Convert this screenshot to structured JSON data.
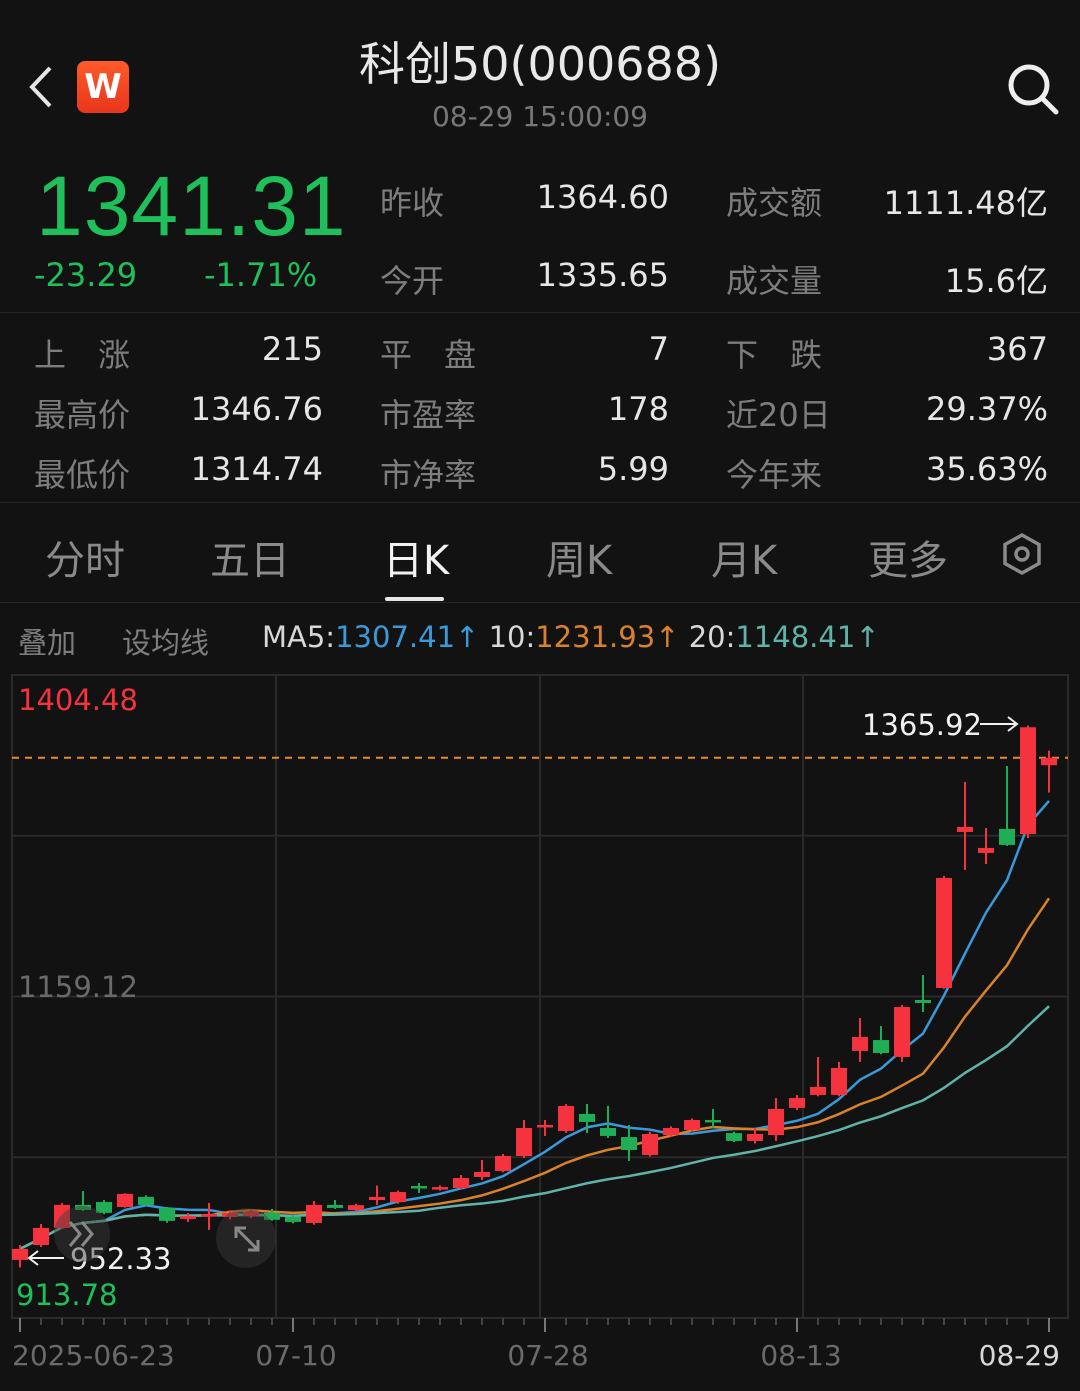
{
  "header": {
    "title": "科创50(000688)",
    "timestamp": "08-29 15:00:09",
    "logo_letter": "W",
    "icons": {
      "back": "chevron-left-icon",
      "logo": "w-app-logo",
      "search": "search-icon"
    }
  },
  "quote": {
    "price": "1341.31",
    "change": "-23.29",
    "change_pct": "-1.71%",
    "rows": [
      {
        "label": "昨收",
        "value": "1364.60",
        "label2": "成交额",
        "value2": "1111.48亿"
      },
      {
        "label": "今开",
        "value": "1335.65",
        "label2": "成交量",
        "value2": "15.6亿"
      }
    ],
    "stats": [
      [
        {
          "label": "上　涨",
          "value": "215"
        },
        {
          "label": "平　盘",
          "value": "7"
        },
        {
          "label": "下　跌",
          "value": "367"
        }
      ],
      [
        {
          "label": "最高价",
          "value": "1346.76"
        },
        {
          "label": "市盈率",
          "value": "178"
        },
        {
          "label": "近20日",
          "value": "29.37%"
        }
      ],
      [
        {
          "label": "最低价",
          "value": "1314.74"
        },
        {
          "label": "市净率",
          "value": "5.99"
        },
        {
          "label": "今年来",
          "value": "35.63%"
        }
      ]
    ]
  },
  "tabs": [
    {
      "label": "分时",
      "active": false
    },
    {
      "label": "五日",
      "active": false
    },
    {
      "label": "日K",
      "active": true
    },
    {
      "label": "周K",
      "active": false
    },
    {
      "label": "月K",
      "active": false
    },
    {
      "label": "更多",
      "active": false
    }
  ],
  "toolbar": {
    "overlay": "叠加",
    "set_ma": "设均线",
    "ma5_label": "MA5:",
    "ma5_value": "1307.41",
    "ma5_arrow": "↑",
    "ma10_label": "10:",
    "ma10_value": "1231.93",
    "ma10_arrow": "↑",
    "ma20_label": "20:",
    "ma20_value": "1148.41",
    "ma20_arrow": "↑"
  },
  "colors": {
    "up": "#f5333f",
    "down": "#1fad55",
    "price_down_text": "#1fbf5c",
    "ma5": "#3a9ad9",
    "ma10": "#d9822b",
    "ma20": "#5fb3a8",
    "last_price_line": "#e8892b"
  },
  "chart_data": {
    "type": "candlestick",
    "y_max_label": "1404.48",
    "y_mid_label": "1159.12",
    "y_min_label": "913.78",
    "ylim": [
      913.78,
      1404.48
    ],
    "max_marker": "1365.92",
    "min_marker": "952.33",
    "last_price": 1341.31,
    "x_tick_labels": [
      {
        "label": "2025-06-23",
        "index": 0
      },
      {
        "label": "07-10",
        "index": 13
      },
      {
        "label": "07-28",
        "index": 25
      },
      {
        "label": "08-13",
        "index": 37
      },
      {
        "label": "08-29",
        "index": 49
      }
    ],
    "ma_periods": [
      5,
      10,
      20
    ],
    "candles": [
      [
        958.1,
        969.5,
        952.33,
        966.5
      ],
      [
        969.5,
        985.5,
        968.0,
        982.5
      ],
      [
        982.5,
        1001.6,
        981.7,
        1000.1
      ],
      [
        1000.1,
        1010.7,
        995.5,
        996.2
      ],
      [
        1002.3,
        1003.8,
        993.0,
        994.0
      ],
      [
        998.5,
        1009.0,
        998.0,
        1008.5
      ],
      [
        1006.2,
        1007.5,
        999.5,
        1000.1
      ],
      [
        997.8,
        998.5,
        986.5,
        987.9
      ],
      [
        989.4,
        993.9,
        987.1,
        991.6
      ],
      [
        991.6,
        1001.6,
        981.0,
        993.1
      ],
      [
        990.9,
        996.0,
        989.0,
        994.0
      ],
      [
        991.6,
        996.9,
        990.0,
        994.7
      ],
      [
        994.0,
        997.0,
        988.0,
        988.7
      ],
      [
        990.9,
        992.0,
        986.0,
        987.1
      ],
      [
        986.3,
        1003.1,
        985.0,
        1000.1
      ],
      [
        1000.1,
        1003.8,
        997.0,
        997.8
      ],
      [
        996.1,
        1001.0,
        995.0,
        999.9
      ],
      [
        1003.8,
        1014.9,
        1000.1,
        1006.2
      ],
      [
        1002.3,
        1011.0,
        1001.0,
        1009.9
      ],
      [
        1014.5,
        1016.8,
        1009.2,
        1013.0
      ],
      [
        1012.2,
        1015.0,
        1011.0,
        1013.7
      ],
      [
        1013.0,
        1022.9,
        1012.0,
        1020.6
      ],
      [
        1021.4,
        1034.4,
        1019.1,
        1025.2
      ],
      [
        1026.0,
        1039.0,
        1025.0,
        1037.4
      ],
      [
        1037.4,
        1064.9,
        1036.0,
        1058.8
      ],
      [
        1059.6,
        1064.9,
        1052.7,
        1061.1
      ],
      [
        1056.5,
        1077.0,
        1055.0,
        1075.6
      ],
      [
        1069.5,
        1077.1,
        1055.0,
        1063.4
      ],
      [
        1058.8,
        1075.6,
        1051.2,
        1052.7
      ],
      [
        1051.9,
        1061.1,
        1033.6,
        1042.0
      ],
      [
        1038.2,
        1056.0,
        1037.0,
        1054.2
      ],
      [
        1053.4,
        1060.0,
        1052.0,
        1058.8
      ],
      [
        1057.3,
        1066.0,
        1056.0,
        1064.9
      ],
      [
        1064.9,
        1073.3,
        1058.8,
        1063.4
      ],
      [
        1054.9,
        1056.0,
        1048.0,
        1048.9
      ],
      [
        1048.9,
        1058.8,
        1047.0,
        1054.2
      ],
      [
        1053.4,
        1081.7,
        1048.9,
        1073.3
      ],
      [
        1074.1,
        1084.0,
        1072.5,
        1081.7
      ],
      [
        1084.0,
        1113.0,
        1083.0,
        1090.1
      ],
      [
        1084.0,
        1109.2,
        1083.0,
        1104.6
      ],
      [
        1117.6,
        1142.7,
        1109.2,
        1128.2
      ],
      [
        1125.9,
        1136.6,
        1115.0,
        1116.0
      ],
      [
        1113.0,
        1152.7,
        1109.2,
        1151.1
      ],
      [
        1156.5,
        1175.5,
        1147.3,
        1154.2
      ],
      [
        1165.6,
        1251.1,
        1165.0,
        1249.6
      ],
      [
        1284.7,
        1322.8,
        1255.7,
        1288.5
      ],
      [
        1268.7,
        1287.7,
        1260.2,
        1272.5
      ],
      [
        1287.0,
        1335.0,
        1274.0,
        1274.8
      ],
      [
        1283.1,
        1365.92,
        1280.0,
        1364.6
      ],
      [
        1335.65,
        1346.76,
        1314.74,
        1341.31
      ]
    ],
    "candle_format": [
      "open",
      "high",
      "low",
      "close"
    ],
    "grid": true
  }
}
